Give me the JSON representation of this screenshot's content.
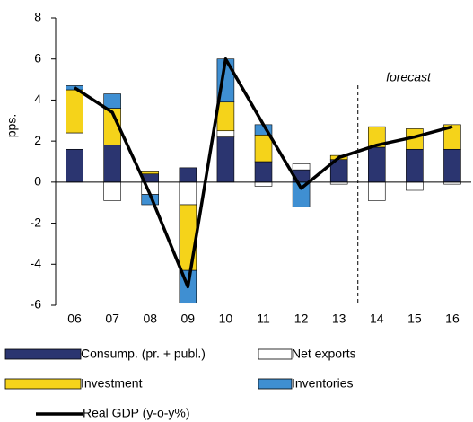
{
  "chart_data": {
    "type": "bar",
    "y_label": "pps.",
    "annotation": "forecast",
    "forecast_after": "13",
    "categories": [
      "06",
      "07",
      "08",
      "09",
      "10",
      "11",
      "12",
      "13",
      "14",
      "15",
      "16"
    ],
    "series": [
      {
        "name": "Consump. (pr. + publ.)",
        "type": "bar",
        "color": "#2b3570",
        "values": [
          1.6,
          1.8,
          0.4,
          0.7,
          2.2,
          1.0,
          0.6,
          1.1,
          1.7,
          1.6,
          1.6
        ]
      },
      {
        "name": "Net exports",
        "type": "bar",
        "color": "#ffffff",
        "values": [
          0.8,
          -0.9,
          -0.6,
          -1.1,
          0.3,
          -0.2,
          0.3,
          -0.1,
          -0.9,
          -0.4,
          -0.1
        ]
      },
      {
        "name": "Investment",
        "type": "bar",
        "color": "#f5d31a",
        "values": [
          2.1,
          1.8,
          0.1,
          -3.2,
          1.4,
          1.3,
          0,
          0.2,
          1.0,
          1.0,
          1.2
        ]
      },
      {
        "name": "Inventories",
        "type": "bar",
        "color": "#3f8fd2",
        "values": [
          0.2,
          0.7,
          -0.5,
          -1.6,
          2.1,
          0.5,
          -1.2,
          0,
          0,
          0,
          0
        ]
      },
      {
        "name": "Real GDP (y-o-y%)",
        "type": "line",
        "color": "#000000",
        "values": [
          4.6,
          3.4,
          -0.6,
          -5.1,
          6.0,
          2.8,
          -0.3,
          1.2,
          1.8,
          2.2,
          2.7
        ]
      }
    ],
    "ylim": [
      -6,
      8
    ],
    "yticks": [
      -6,
      -4,
      -2,
      0,
      2,
      4,
      6,
      8
    ]
  }
}
